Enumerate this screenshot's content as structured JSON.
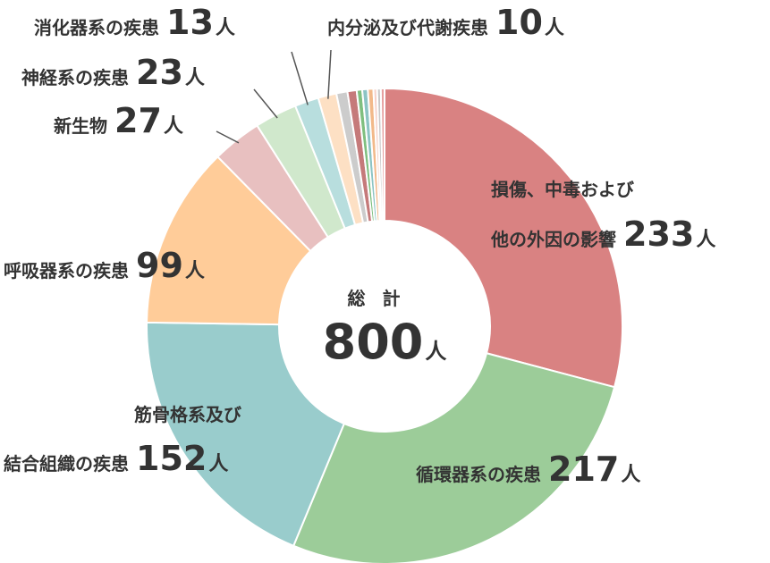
{
  "chart_data": {
    "type": "pie",
    "donut": true,
    "unit": "人",
    "total_label": "総 計",
    "total": 800,
    "slices": [
      {
        "label_lines": [
          "損傷、中毒および",
          "他の外因の影響"
        ],
        "value": 233,
        "color": "#d98282"
      },
      {
        "label_lines": [
          "循環器系の疾患"
        ],
        "value": 217,
        "color": "#9ccc99"
      },
      {
        "label_lines": [
          "筋骨格系及び",
          "結合組織の疾患"
        ],
        "value": 152,
        "color": "#99cccc"
      },
      {
        "label_lines": [
          "呼吸器系の疾患"
        ],
        "value": 99,
        "color": "#ffcc99"
      },
      {
        "label_lines": [
          "新生物"
        ],
        "value": 27,
        "color": "#e8c0c0"
      },
      {
        "label_lines": [
          "神経系の疾患"
        ],
        "value": 23,
        "color": "#d0e8cc"
      },
      {
        "label_lines": [
          "消化器系の疾患"
        ],
        "value": 13,
        "color": "#b8dede"
      },
      {
        "label_lines": [
          "内分泌及び代謝疾患"
        ],
        "value": 10,
        "color": "#fde0c4"
      },
      {
        "label_lines": [],
        "value": 6,
        "color": "#cccccc"
      },
      {
        "label_lines": [],
        "value": 5,
        "color": "#c57a7a"
      },
      {
        "label_lines": [],
        "value": 3,
        "color": "#7fbf7f"
      },
      {
        "label_lines": [],
        "value": 3,
        "color": "#8cc4c4"
      },
      {
        "label_lines": [],
        "value": 3,
        "color": "#f2b98a"
      },
      {
        "label_lines": [],
        "value": 2,
        "color": "#f5d0c8"
      },
      {
        "label_lines": [],
        "value": 2,
        "color": "#c8c8c8"
      },
      {
        "label_lines": [],
        "value": 2,
        "color": "#e6a0a0"
      }
    ]
  }
}
